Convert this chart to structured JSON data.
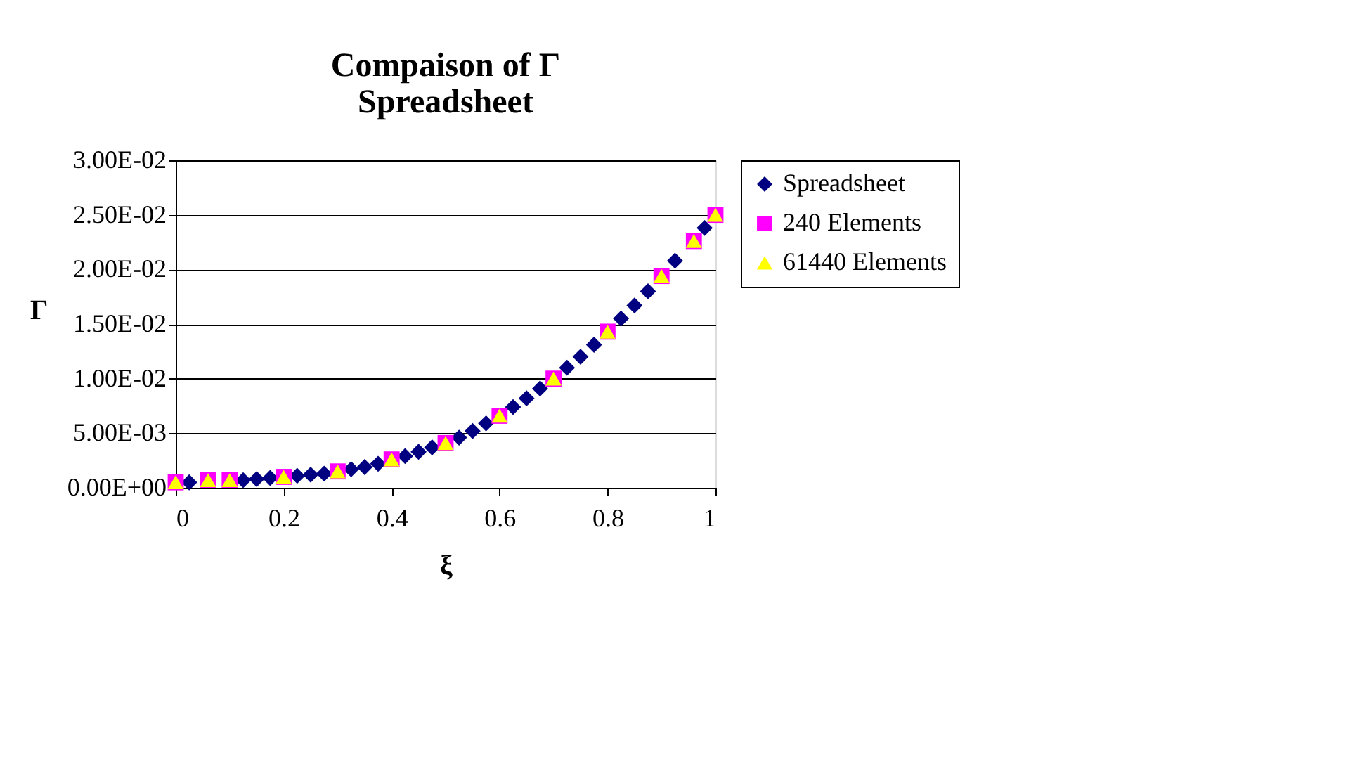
{
  "chart_data": {
    "type": "scatter",
    "title": [
      "Compaison of Γ",
      "Spreadsheet"
    ],
    "xlabel": "ξ",
    "ylabel": "Γ",
    "xlim": [
      0,
      1
    ],
    "xticks": [
      0,
      0.2,
      0.4,
      0.6,
      0.8,
      1
    ],
    "ylim": [
      0,
      0.03
    ],
    "yticks": [
      {
        "value": 0,
        "label": "0.00E+00"
      },
      {
        "value": 0.005,
        "label": "5.00E-03"
      },
      {
        "value": 0.01,
        "label": "1.00E-02"
      },
      {
        "value": 0.015,
        "label": "1.50E-02"
      },
      {
        "value": 0.02,
        "label": "2.00E-02"
      },
      {
        "value": 0.025,
        "label": "2.50E-02"
      },
      {
        "value": 0.03,
        "label": "3.00E-02"
      }
    ],
    "grid": "y",
    "legend": "right",
    "series": [
      {
        "name": "Spreadsheet",
        "color": "#000080",
        "marker": "diamond",
        "x": [
          0.025,
          0.125,
          0.15,
          0.175,
          0.225,
          0.25,
          0.275,
          0.325,
          0.35,
          0.375,
          0.425,
          0.45,
          0.475,
          0.525,
          0.55,
          0.575,
          0.625,
          0.65,
          0.675,
          0.725,
          0.75,
          0.775,
          0.825,
          0.85,
          0.875,
          0.925,
          0.98
        ],
        "values": [
          0.0005,
          0.0007,
          0.0008,
          0.0009,
          0.0011,
          0.0012,
          0.0013,
          0.0017,
          0.0019,
          0.0022,
          0.0029,
          0.0033,
          0.0037,
          0.0046,
          0.0052,
          0.0059,
          0.0074,
          0.0082,
          0.0091,
          0.011,
          0.012,
          0.0131,
          0.0155,
          0.0167,
          0.018,
          0.0208,
          0.0238
        ]
      },
      {
        "name": "240 Elements",
        "color": "#ff00ff",
        "marker": "square",
        "x": [
          0,
          0.06,
          0.1,
          0.2,
          0.3,
          0.4,
          0.5,
          0.6,
          0.7,
          0.8,
          0.9,
          0.96,
          1
        ],
        "values": [
          0.0005,
          0.0007,
          0.0007,
          0.001,
          0.0015,
          0.0026,
          0.0041,
          0.0066,
          0.01,
          0.0143,
          0.0194,
          0.0226,
          0.025
        ]
      },
      {
        "name": "61440 Elements",
        "color": "#ffff00",
        "marker": "triangle",
        "x": [
          0,
          0.06,
          0.1,
          0.2,
          0.3,
          0.4,
          0.5,
          0.6,
          0.7,
          0.8,
          0.9,
          0.96,
          1
        ],
        "values": [
          0.0005,
          0.0007,
          0.0007,
          0.001,
          0.0015,
          0.0026,
          0.0041,
          0.0066,
          0.01,
          0.0143,
          0.0194,
          0.0226,
          0.025
        ]
      }
    ]
  }
}
